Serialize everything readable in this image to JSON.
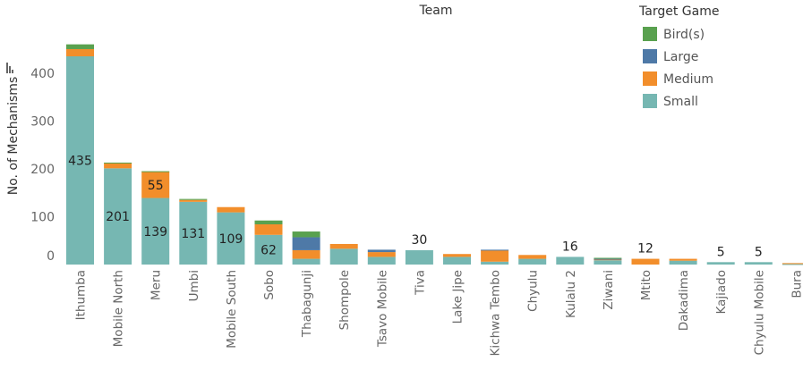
{
  "chart_data": {
    "type": "bar",
    "stacked": true,
    "title": "Team",
    "xlabel": "",
    "ylabel": "No. of Mechanisms",
    "ylim": [
      0,
      470
    ],
    "y_ticks": [
      0,
      100,
      200,
      300,
      400
    ],
    "y_tick_labels": [
      "0",
      "100",
      "200",
      "300",
      "400"
    ],
    "grid": false,
    "legend_title": "Target Game",
    "legend_position": "top-right",
    "categories": [
      "Ithumba",
      "Mobile North",
      "Meru",
      "Umbi",
      "Mobile South",
      "Sobo",
      "Thabagunji",
      "Shompole",
      "Tsavo Mobile",
      "Tiva",
      "Lake Jipe",
      "Kichwa Tembo",
      "Chyulu",
      "Kulalu 2",
      "Ziwani",
      "Mtito",
      "Dakadima",
      "Kajiado",
      "Chyulu Mobile",
      "Bura"
    ],
    "series": [
      {
        "name": "Small",
        "color": "#76b7b2",
        "values": [
          435,
          201,
          139,
          131,
          109,
          62,
          12,
          33,
          16,
          30,
          16,
          6,
          12,
          16,
          9,
          0,
          8,
          5,
          5,
          1
        ]
      },
      {
        "name": "Medium",
        "color": "#f28e2b",
        "values": [
          15,
          11,
          55,
          4,
          11,
          22,
          18,
          10,
          10,
          0,
          6,
          24,
          8,
          0,
          2,
          12,
          4,
          0,
          0,
          2
        ]
      },
      {
        "name": "Large",
        "color": "#4e79a7",
        "values": [
          0,
          0,
          0,
          0,
          0,
          0,
          27,
          0,
          5,
          0,
          0,
          1,
          0,
          0,
          1,
          0,
          0,
          0,
          0,
          0
        ]
      },
      {
        "name": "Bird(s)",
        "color": "#59a14f",
        "values": [
          10,
          1,
          1,
          2,
          0,
          8,
          12,
          0,
          0,
          0,
          0,
          0,
          0,
          0,
          2,
          0,
          0,
          0,
          0,
          0
        ]
      }
    ],
    "data_labels": [
      {
        "category": "Ithumba",
        "series": "Small",
        "text": "435"
      },
      {
        "category": "Mobile North",
        "series": "Small",
        "text": "201"
      },
      {
        "category": "Meru",
        "series": "Medium",
        "text": "55"
      },
      {
        "category": "Meru",
        "series": "Small",
        "text": "139"
      },
      {
        "category": "Umbi",
        "series": "Small",
        "text": "131"
      },
      {
        "category": "Mobile South",
        "series": "Small",
        "text": "109"
      },
      {
        "category": "Sobo",
        "series": "Small",
        "text": "62"
      },
      {
        "category": "Tiva",
        "series": "Small",
        "text": "30",
        "above": true
      },
      {
        "category": "Kulalu 2",
        "series": "Small",
        "text": "16",
        "above": true
      },
      {
        "category": "Mtito",
        "series": "Medium",
        "text": "12",
        "above": true
      },
      {
        "category": "Kajiado",
        "series": "Small",
        "text": "5",
        "above": true
      },
      {
        "category": "Chyulu Mobile",
        "series": "Small",
        "text": "5",
        "above": true
      }
    ],
    "legend_entries": [
      "Bird(s)",
      "Large",
      "Medium",
      "Small"
    ],
    "sort_icon": "sort-descending-icon"
  }
}
